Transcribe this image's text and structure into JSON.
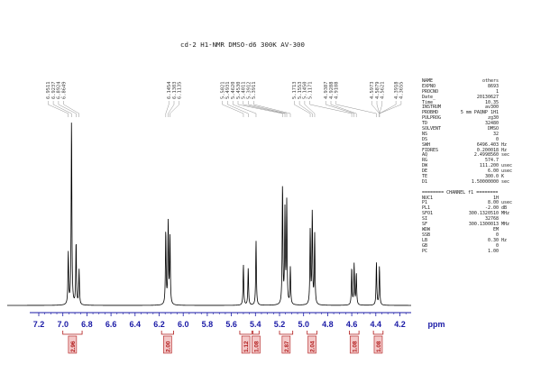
{
  "chart_data": {
    "type": "line",
    "title": "cd-2  H1-NMR  DMSO-d6  300K  AV-300",
    "xlabel": "ppm",
    "xlim": [
      7.3,
      3.95
    ],
    "x_reversed": true,
    "x_ticks": [
      "7.2",
      "7.0",
      "6.8",
      "6.6",
      "6.4",
      "6.2",
      "6.0",
      "5.8",
      "5.6",
      "5.4",
      "5.2",
      "5.0",
      "4.8",
      "4.6",
      "4.4",
      "4.2"
    ],
    "x_tick_values": [
      7.2,
      7.0,
      6.8,
      6.6,
      6.4,
      6.2,
      6.0,
      5.8,
      5.6,
      5.4,
      5.2,
      5.0,
      4.8,
      4.6,
      4.4,
      4.2
    ],
    "peak_labels": [
      "6.9511",
      "6.9237",
      "6.8924",
      "6.8649",
      "6.1454",
      "6.1303",
      "6.1135",
      "5.5021",
      "5.4931",
      "5.4620",
      "5.4530",
      "5.4011",
      "5.3912",
      "5.3911",
      "5.1713",
      "5.1553",
      "5.1450",
      "5.1171",
      "4.9387",
      "4.9288",
      "4.9108",
      "4.5973",
      "4.5879",
      "4.5621",
      "4.3918",
      "4.3655"
    ],
    "peaks": [
      {
        "x": 6.955,
        "height": 0.28
      },
      {
        "x": 6.928,
        "height": 1.0
      },
      {
        "x": 6.89,
        "height": 0.34
      },
      {
        "x": 6.865,
        "height": 0.19
      },
      {
        "x": 6.145,
        "height": 0.4
      },
      {
        "x": 6.125,
        "height": 0.44
      },
      {
        "x": 6.11,
        "height": 0.36
      },
      {
        "x": 5.5,
        "height": 0.22
      },
      {
        "x": 5.46,
        "height": 0.2
      },
      {
        "x": 5.395,
        "height": 0.35
      },
      {
        "x": 5.175,
        "height": 0.65
      },
      {
        "x": 5.155,
        "height": 0.5
      },
      {
        "x": 5.14,
        "height": 0.55
      },
      {
        "x": 5.11,
        "height": 0.2
      },
      {
        "x": 4.945,
        "height": 0.4
      },
      {
        "x": 4.928,
        "height": 0.5
      },
      {
        "x": 4.908,
        "height": 0.38
      },
      {
        "x": 4.6,
        "height": 0.2
      },
      {
        "x": 4.58,
        "height": 0.22
      },
      {
        "x": 4.562,
        "height": 0.17
      },
      {
        "x": 4.395,
        "height": 0.23
      },
      {
        "x": 4.37,
        "height": 0.21
      }
    ],
    "integrals": [
      {
        "from": 7.0,
        "to": 6.84,
        "value": "2.96"
      },
      {
        "from": 6.18,
        "to": 6.08,
        "value": "2.00"
      },
      {
        "from": 5.53,
        "to": 5.43,
        "value": "1.12"
      },
      {
        "from": 5.42,
        "to": 5.37,
        "value": "1.08"
      },
      {
        "from": 5.2,
        "to": 5.09,
        "value": "2.87"
      },
      {
        "from": 4.97,
        "to": 4.89,
        "value": "2.04"
      },
      {
        "from": 4.62,
        "to": 4.54,
        "value": "1.08"
      },
      {
        "from": 4.42,
        "to": 4.34,
        "value": "1.08"
      }
    ],
    "grid": false,
    "colors": {
      "spectrum": "#000000",
      "axis": "#1a1aa6",
      "integral": "#b01818",
      "integral_fill": "#f3c8c8",
      "peak_label": "#444444"
    }
  },
  "params": [
    {
      "name": "NAME",
      "value": "others",
      "unit": ""
    },
    {
      "name": "EXPNO",
      "value": "8693",
      "unit": ""
    },
    {
      "name": "PROCNO",
      "value": "1",
      "unit": ""
    },
    {
      "name": "Date_",
      "value": "20130627",
      "unit": ""
    },
    {
      "name": "Time",
      "value": "10.35",
      "unit": ""
    },
    {
      "name": "INSTRUM",
      "value": "av300",
      "unit": ""
    },
    {
      "name": "PROBHD",
      "value": "5 mm PAQNP 1H1",
      "unit": ""
    },
    {
      "name": "PULPROG",
      "value": "zg30",
      "unit": ""
    },
    {
      "name": "TD",
      "value": "32480",
      "unit": ""
    },
    {
      "name": "SOLVENT",
      "value": "DMSO",
      "unit": ""
    },
    {
      "name": "NS",
      "value": "32",
      "unit": ""
    },
    {
      "name": "DS",
      "value": "0",
      "unit": ""
    },
    {
      "name": "SWH",
      "value": "6496.403",
      "unit": "Hz"
    },
    {
      "name": "FIDRES",
      "value": "0.200018",
      "unit": "Hz"
    },
    {
      "name": "AQ",
      "value": "2.4998560",
      "unit": "sec"
    },
    {
      "name": "RG",
      "value": "574.7",
      "unit": ""
    },
    {
      "name": "DW",
      "value": "111.200",
      "unit": "usec"
    },
    {
      "name": "DE",
      "value": "6.00",
      "unit": "usec"
    },
    {
      "name": "TE",
      "value": "300.0",
      "unit": "K"
    },
    {
      "name": "D1",
      "value": "1.50000000",
      "unit": "sec"
    },
    {
      "name": "",
      "value": "",
      "unit": ""
    },
    {
      "name": "======== CHANNEL f1 ========",
      "value": "",
      "unit": "",
      "sep": true
    },
    {
      "name": "NUC1",
      "value": "1H",
      "unit": ""
    },
    {
      "name": "P1",
      "value": "8.00",
      "unit": "usec"
    },
    {
      "name": "PL1",
      "value": "-2.00",
      "unit": "dB"
    },
    {
      "name": "SFO1",
      "value": "300.1320510",
      "unit": "MHz"
    },
    {
      "name": "SI",
      "value": "32768",
      "unit": ""
    },
    {
      "name": "SF",
      "value": "300.1300013",
      "unit": "MHz"
    },
    {
      "name": "WDW",
      "value": "EM",
      "unit": ""
    },
    {
      "name": "SSB",
      "value": "0",
      "unit": ""
    },
    {
      "name": "LB",
      "value": "0.30",
      "unit": "Hz"
    },
    {
      "name": "GB",
      "value": "0",
      "unit": ""
    },
    {
      "name": "PC",
      "value": "1.00",
      "unit": ""
    }
  ]
}
